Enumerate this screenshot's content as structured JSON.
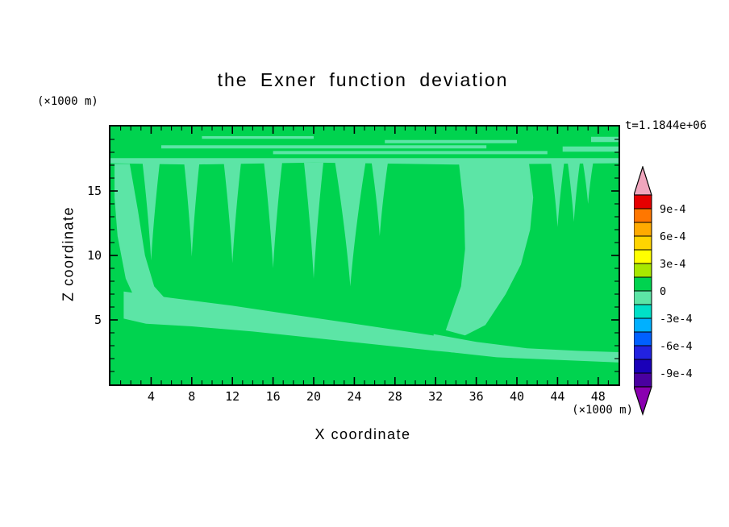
{
  "figure": {
    "background": "#ffffff"
  },
  "chart_data": {
    "type": "heatmap",
    "title": "the Exner function deviation",
    "xlabel": "X coordinate",
    "ylabel": "Z coordinate",
    "x_unit": "(×1000 m)",
    "y_unit": "(×1000 m)",
    "time_label": "t=1.1844e+06",
    "xlim": [
      0,
      50
    ],
    "ylim": [
      0,
      20
    ],
    "x_ticks": [
      4,
      8,
      12,
      16,
      20,
      24,
      28,
      32,
      36,
      40,
      44,
      48
    ],
    "y_ticks": [
      5,
      10,
      15
    ],
    "minor_tick_step": 1,
    "grid": false,
    "colorbar": {
      "position": "right",
      "tick_labels": [
        "9e-4",
        "6e-4",
        "3e-4",
        "0",
        "-3e-4",
        "-6e-4",
        "-9e-4"
      ],
      "level_step": 0.00015,
      "levels_top_to_bottom": [
        0.00105,
        0.0009,
        0.00075,
        0.0006,
        0.00045,
        0.0003,
        0.00015,
        0,
        -0.00015,
        -0.0003,
        -0.00045,
        -0.0006,
        -0.00075,
        -0.0009,
        -0.00105
      ],
      "segment_colors": [
        "#e60000",
        "#ff7700",
        "#ffaa00",
        "#ffd400",
        "#ffff00",
        "#a8e800",
        "#00d34f",
        "#5ce5a6",
        "#00e0c8",
        "#00b0ff",
        "#0060ff",
        "#2222e0",
        "#1a00b8",
        "#4a00a0"
      ],
      "over_color": "#f0a6bd",
      "under_color": "#8a00b0"
    },
    "field": {
      "background_color": "#00d34f",
      "background_value_band": "0 to +1.5e-4",
      "anomaly_color": "#5ce5a6",
      "anomaly_value_band": "-1.5e-4 to 0",
      "plume_attach_km": 17.2,
      "plumes": [
        {
          "x_km": 4.0,
          "half_width_km": 0.85,
          "tip_km": 9.6
        },
        {
          "x_km": 8.0,
          "half_width_km": 0.75,
          "tip_km": 9.9
        },
        {
          "x_km": 12.0,
          "half_width_km": 0.85,
          "tip_km": 9.4
        },
        {
          "x_km": 16.0,
          "half_width_km": 0.9,
          "tip_km": 9.0
        },
        {
          "x_km": 20.0,
          "half_width_km": 0.95,
          "tip_km": 8.2
        },
        {
          "x_km": 23.6,
          "half_width_km": 1.5,
          "tip_km": 7.6
        },
        {
          "x_km": 26.5,
          "half_width_km": 0.8,
          "tip_km": 11.5
        },
        {
          "x_km": 44.0,
          "half_width_km": 0.65,
          "tip_km": 12.2
        },
        {
          "x_km": 45.6,
          "half_width_km": 0.6,
          "tip_km": 12.6
        },
        {
          "x_km": 47.0,
          "half_width_km": 0.5,
          "tip_km": 14.0
        }
      ],
      "regions": [
        {
          "name": "top-layer-band",
          "points": [
            [
              0,
              17.55
            ],
            [
              50,
              17.55
            ],
            [
              50,
              17.15
            ],
            [
              34,
              17.05
            ],
            [
              20,
              17.2
            ],
            [
              8,
              17.05
            ],
            [
              0,
              17.15
            ]
          ]
        },
        {
          "name": "streak-a",
          "points": [
            [
              5,
              18.55
            ],
            [
              37,
              18.55
            ],
            [
              37,
              18.3
            ],
            [
              5,
              18.3
            ]
          ]
        },
        {
          "name": "streak-b",
          "points": [
            [
              16,
              18.1
            ],
            [
              43,
              18.1
            ],
            [
              43,
              17.85
            ],
            [
              16,
              17.85
            ]
          ]
        },
        {
          "name": "streak-c",
          "points": [
            [
              27,
              18.95
            ],
            [
              40,
              18.95
            ],
            [
              40,
              18.7
            ],
            [
              27,
              18.7
            ]
          ]
        },
        {
          "name": "streak-d",
          "points": [
            [
              44.5,
              18.45
            ],
            [
              50,
              18.45
            ],
            [
              50,
              18.05
            ],
            [
              44.5,
              18.05
            ]
          ]
        },
        {
          "name": "streak-e",
          "points": [
            [
              9,
              19.25
            ],
            [
              20,
              19.25
            ],
            [
              20,
              19.05
            ],
            [
              9,
              19.05
            ]
          ]
        },
        {
          "name": "left-column",
          "points": [
            [
              0.4,
              17.1
            ],
            [
              1.9,
              17.1
            ],
            [
              2.7,
              13.5
            ],
            [
              3.4,
              10
            ],
            [
              4.3,
              7.6
            ],
            [
              5.9,
              6.2
            ],
            [
              8.5,
              5.6
            ],
            [
              8.5,
              4.6
            ],
            [
              5.2,
              4.8
            ],
            [
              2.9,
              5.8
            ],
            [
              1.5,
              8.2
            ],
            [
              0.7,
              11.5
            ],
            [
              0.4,
              14.5
            ]
          ]
        },
        {
          "name": "bottom-band",
          "points": [
            [
              1.3,
              7.2
            ],
            [
              6,
              6.7
            ],
            [
              12,
              6.1
            ],
            [
              18,
              5.4
            ],
            [
              24,
              4.7
            ],
            [
              30,
              4.0
            ],
            [
              35,
              3.4
            ],
            [
              37.6,
              2.9
            ],
            [
              37.6,
              2.2
            ],
            [
              32,
              2.6
            ],
            [
              26,
              3.1
            ],
            [
              20,
              3.6
            ],
            [
              14,
              4.1
            ],
            [
              8,
              4.5
            ],
            [
              3.5,
              4.7
            ],
            [
              1.3,
              5.1
            ]
          ]
        },
        {
          "name": "right-column",
          "points": [
            [
              34.3,
              17.1
            ],
            [
              41.2,
              17.1
            ],
            [
              41.6,
              14.5
            ],
            [
              41.3,
              12
            ],
            [
              40.4,
              9.3
            ],
            [
              38.9,
              7.0
            ],
            [
              36.9,
              4.6
            ],
            [
              34.9,
              3.8
            ],
            [
              33.0,
              4.2
            ],
            [
              34.5,
              7.6
            ],
            [
              34.9,
              10.5
            ],
            [
              34.8,
              13.5
            ]
          ]
        },
        {
          "name": "bottom-right-band",
          "points": [
            [
              31.8,
              3.9
            ],
            [
              36,
              3.3
            ],
            [
              41,
              2.8
            ],
            [
              46,
              2.6
            ],
            [
              50,
              2.5
            ],
            [
              50,
              1.7
            ],
            [
              44,
              1.9
            ],
            [
              38,
              2.1
            ],
            [
              33.4,
              2.5
            ],
            [
              31.8,
              2.9
            ]
          ]
        },
        {
          "name": "top-right-patch",
          "points": [
            [
              47.3,
              19.2
            ],
            [
              50,
              19.2
            ],
            [
              50,
              18.8
            ],
            [
              47.3,
              18.8
            ]
          ]
        }
      ]
    }
  }
}
